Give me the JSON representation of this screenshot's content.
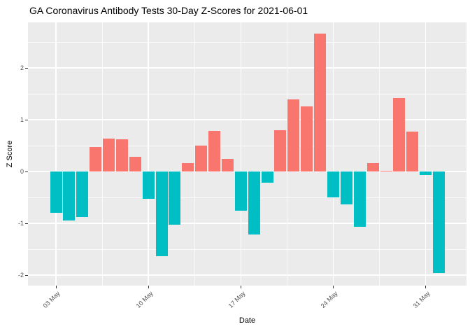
{
  "chart_data": {
    "type": "bar",
    "title": "GA Coronavirus Antibody Tests 30-Day Z-Scores for 2021-06-01",
    "xlabel": "Date",
    "ylabel": "Z Score",
    "dates": [
      "2021-05-03",
      "2021-05-04",
      "2021-05-05",
      "2021-05-06",
      "2021-05-07",
      "2021-05-08",
      "2021-05-09",
      "2021-05-10",
      "2021-05-11",
      "2021-05-12",
      "2021-05-13",
      "2021-05-14",
      "2021-05-15",
      "2021-05-16",
      "2021-05-17",
      "2021-05-18",
      "2021-05-19",
      "2021-05-20",
      "2021-05-21",
      "2021-05-22",
      "2021-05-23",
      "2021-05-24",
      "2021-05-25",
      "2021-05-26",
      "2021-05-27",
      "2021-05-28",
      "2021-05-29",
      "2021-05-30",
      "2021-05-31",
      "2021-06-01"
    ],
    "values": [
      -0.79,
      -0.94,
      -0.87,
      0.48,
      0.64,
      0.62,
      0.29,
      -0.52,
      -1.63,
      -1.02,
      0.17,
      0.5,
      0.78,
      0.24,
      -0.76,
      -1.22,
      -0.21,
      0.8,
      1.4,
      1.26,
      2.66,
      -0.5,
      -0.63,
      -1.07,
      0.17,
      0.02,
      1.42,
      0.77,
      -0.06,
      -1.96
    ],
    "x_ticks": [
      {
        "label": "03 May",
        "day_index": 0
      },
      {
        "label": "10 May",
        "day_index": 7
      },
      {
        "label": "17 May",
        "day_index": 14
      },
      {
        "label": "24 May",
        "day_index": 21
      },
      {
        "label": "31 May",
        "day_index": 28
      }
    ],
    "y_ticks": [
      {
        "label": "-2",
        "value": -2
      },
      {
        "label": "-1",
        "value": -1
      },
      {
        "label": "0",
        "value": 0
      },
      {
        "label": "1",
        "value": 1
      },
      {
        "label": "2",
        "value": 2
      }
    ],
    "y_minor_ticks": [
      -1.5,
      -0.5,
      0.5,
      1.5,
      2.5
    ],
    "ylim": [
      -2.2,
      2.88
    ],
    "grid": true,
    "legend": "none",
    "colors": {
      "positive_bar": "#F8766D",
      "negative_bar": "#00BFC4",
      "panel_bg": "#EBEBEB",
      "gridline": "#FFFFFF",
      "tick_text": "#4D4D4D",
      "axis_text": "#000000"
    }
  }
}
